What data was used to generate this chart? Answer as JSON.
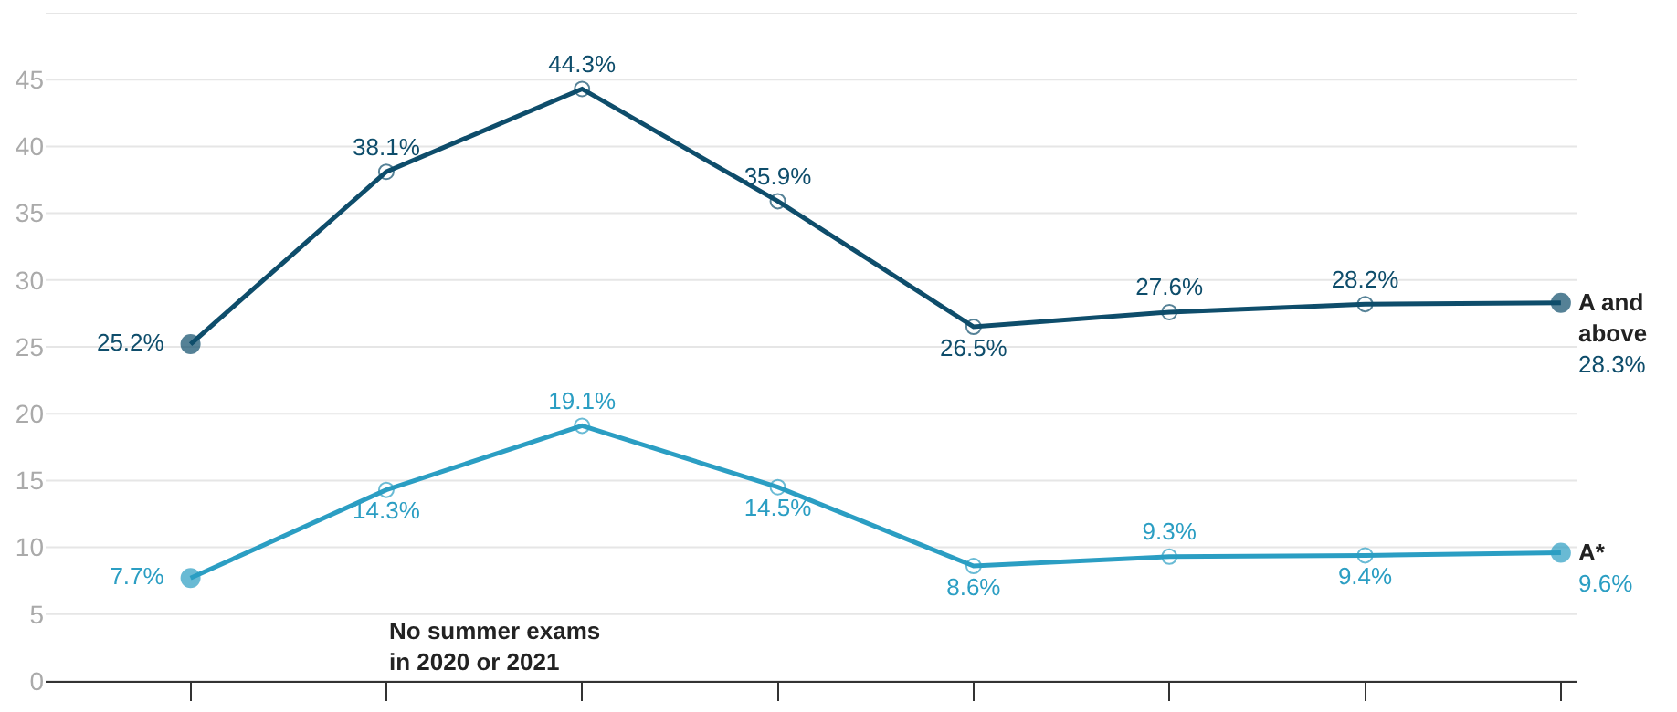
{
  "chart_data": {
    "type": "line",
    "categories": [
      null,
      null,
      null,
      null,
      null,
      null,
      null,
      null
    ],
    "series": [
      {
        "name": "A and above",
        "color": "#0e4d6b",
        "values": [
          25.2,
          38.1,
          44.3,
          35.9,
          26.5,
          27.6,
          28.2,
          28.3
        ],
        "value_labels": [
          "25.2%",
          "38.1%",
          "44.3%",
          "35.9%",
          "26.5%",
          "27.6%",
          "28.2%",
          "28.3%"
        ]
      },
      {
        "name": "A*",
        "color": "#2b9ec3",
        "values": [
          7.7,
          14.3,
          19.1,
          14.5,
          8.6,
          9.3,
          9.4,
          9.6
        ],
        "value_labels": [
          "7.7%",
          "14.3%",
          "19.1%",
          "14.5%",
          "8.6%",
          "9.3%",
          "9.4%",
          "9.6%"
        ]
      }
    ],
    "ylim": [
      0,
      50
    ],
    "yticks": [
      0,
      5,
      10,
      15,
      20,
      25,
      30,
      35,
      40,
      45,
      {
        "value": 50,
        "label": null
      }
    ],
    "grid": "y",
    "marker": "circle",
    "line_style": "solid",
    "legend": false,
    "annotations": [
      "No summer exams\nin 2020 or 2021"
    ]
  }
}
